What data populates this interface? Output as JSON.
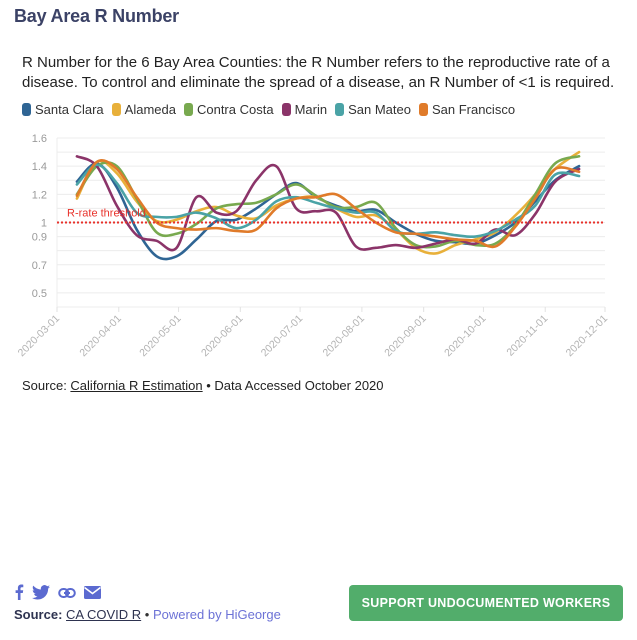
{
  "header": {
    "title": "Bay Area R Number"
  },
  "description": "R Number for the 6 Bay Area Counties: the R Number refers to the reproductive rate of a disease. To control and eliminate the spread of a disease, an R Number of <1 is required.",
  "source_line": {
    "prefix": "Source: ",
    "link": "California R Estimation",
    "suffix": " • Data Accessed October 2020"
  },
  "footer": {
    "source_label": "Source:",
    "source_link": "CA COVID R",
    "separator": " • ",
    "powered_by": "Powered by HiGeorge",
    "cta_button": "SUPPORT UNDOCUMENTED WORKERS",
    "social_icons": [
      "facebook-icon",
      "twitter-icon",
      "link-icon",
      "email-icon"
    ],
    "icon_color": "#5b6ad0",
    "cta_color": "#52ad6b"
  },
  "chart_data": {
    "type": "line",
    "title": "Bay Area R Number",
    "xlabel": "",
    "ylabel": "",
    "x_ticks": [
      "2020-03-01",
      "2020-04-01",
      "2020-05-01",
      "2020-06-01",
      "2020-07-01",
      "2020-08-01",
      "2020-09-01",
      "2020-10-01",
      "2020-11-01",
      "2020-12-01"
    ],
    "y_ticks": [
      0.5,
      0.7,
      0.9,
      1,
      1.2,
      1.4,
      1.6
    ],
    "ylim": [
      0.4,
      1.6
    ],
    "grid": true,
    "legend": "top-left",
    "threshold": {
      "value": 1,
      "label": "R-rate threshold",
      "color": "#e8322b"
    },
    "x": [
      "2020-03-11",
      "2020-03-21",
      "2020-03-31",
      "2020-04-10",
      "2020-04-20",
      "2020-04-30",
      "2020-05-10",
      "2020-05-20",
      "2020-05-30",
      "2020-06-09",
      "2020-06-19",
      "2020-06-29",
      "2020-07-09",
      "2020-07-19",
      "2020-07-29",
      "2020-08-08",
      "2020-08-18",
      "2020-08-28",
      "2020-09-07",
      "2020-09-17",
      "2020-09-27",
      "2020-10-07",
      "2020-10-17",
      "2020-10-27",
      "2020-11-06",
      "2020-11-18"
    ],
    "series": [
      {
        "name": "Santa Clara",
        "color": "#2f6594",
        "values": [
          1.29,
          1.42,
          1.25,
          0.95,
          0.76,
          0.76,
          0.88,
          1.01,
          1.02,
          1.1,
          1.2,
          1.28,
          1.18,
          1.12,
          1.08,
          1.09,
          1.0,
          0.92,
          0.87,
          0.86,
          0.85,
          0.91,
          1.0,
          1.15,
          1.3,
          1.4
        ]
      },
      {
        "name": "Alameda",
        "color": "#e8b03a",
        "values": [
          1.17,
          1.43,
          1.35,
          1.15,
          1.01,
          1.02,
          1.08,
          1.11,
          1.05,
          1.03,
          1.12,
          1.17,
          1.18,
          1.1,
          1.04,
          1.05,
          0.95,
          0.82,
          0.78,
          0.84,
          0.88,
          0.93,
          1.05,
          1.2,
          1.38,
          1.5
        ]
      },
      {
        "name": "Contra Costa",
        "color": "#78a94f",
        "values": [
          1.2,
          1.4,
          1.4,
          1.17,
          0.93,
          0.92,
          0.99,
          1.1,
          1.13,
          1.14,
          1.2,
          1.27,
          1.19,
          1.11,
          1.11,
          1.14,
          0.96,
          0.84,
          0.83,
          0.87,
          0.84,
          0.85,
          0.98,
          1.2,
          1.42,
          1.47
        ]
      },
      {
        "name": "Marin",
        "color": "#8b3469",
        "values": null,
        "values_list": [
          1.47,
          1.4,
          1.12,
          0.91,
          0.87,
          0.82,
          1.18,
          1.07,
          1.08,
          1.3,
          1.4,
          1.1,
          1.08,
          1.07,
          0.83,
          0.82,
          0.84,
          0.82,
          0.85,
          0.88,
          0.85,
          0.95,
          0.91,
          1.06,
          1.29,
          1.38
        ]
      },
      {
        "name": "San Mateo",
        "color": "#4aa3a6",
        "values": [
          1.27,
          1.41,
          1.28,
          1.07,
          1.04,
          1.04,
          1.07,
          1.03,
          0.96,
          1.02,
          1.15,
          1.18,
          1.14,
          1.1,
          1.07,
          1.07,
          0.94,
          0.92,
          0.93,
          0.91,
          0.9,
          0.94,
          1.02,
          1.12,
          1.34,
          1.33
        ]
      },
      {
        "name": "San Francisco",
        "color": "#e07b2a",
        "values": [
          1.19,
          1.43,
          1.38,
          1.18,
          1.0,
          0.96,
          0.95,
          0.96,
          0.94,
          0.95,
          1.1,
          1.17,
          1.18,
          1.2,
          1.1,
          1.0,
          0.93,
          0.92,
          0.9,
          0.88,
          0.87,
          0.83,
          0.97,
          1.17,
          1.38,
          1.36
        ]
      }
    ]
  }
}
